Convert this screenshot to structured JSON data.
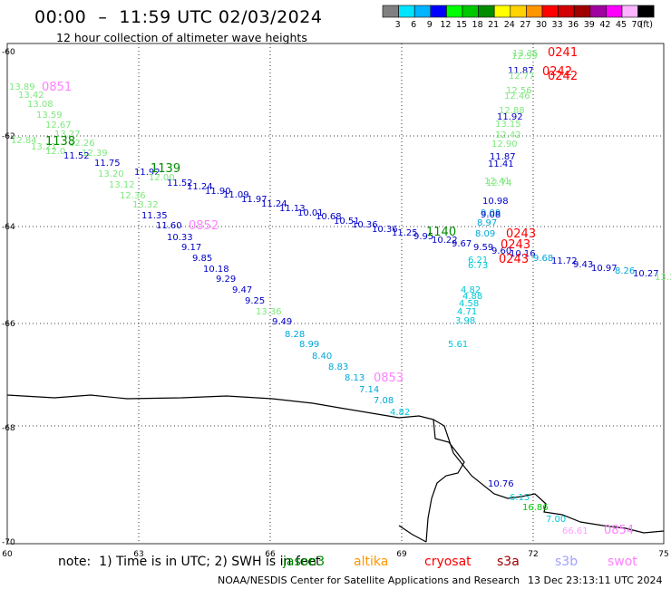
{
  "header": {
    "title": "00:00  –  11:59 UTC 02/03/2024",
    "subtitle": "12 hour collection of altimeter wave heights"
  },
  "scale": {
    "unit": "(ft)",
    "entries": [
      {
        "label": "3",
        "color": "#808080"
      },
      {
        "label": "6",
        "color": "#00e5ff"
      },
      {
        "label": "9",
        "color": "#00b4ff"
      },
      {
        "label": "12",
        "color": "#0000ff"
      },
      {
        "label": "15",
        "color": "#00ff00"
      },
      {
        "label": "18",
        "color": "#00c800"
      },
      {
        "label": "21",
        "color": "#008c00"
      },
      {
        "label": "24",
        "color": "#ffff00"
      },
      {
        "label": "27",
        "color": "#ffd200"
      },
      {
        "label": "30",
        "color": "#ff9600"
      },
      {
        "label": "33",
        "color": "#ff0000"
      },
      {
        "label": "36",
        "color": "#d20000"
      },
      {
        "label": "39",
        "color": "#a00000"
      },
      {
        "label": "42",
        "color": "#a000a0"
      },
      {
        "label": "45",
        "color": "#ff00ff"
      },
      {
        "label": "70",
        "color": "#ffb4ff"
      },
      {
        "label": "",
        "color": "#000000"
      }
    ]
  },
  "axes": {
    "lat_labels": [
      "-60",
      "-62",
      "-64",
      "-66",
      "-68",
      "-70"
    ],
    "lon_labels": [
      "60",
      "63",
      "66",
      "69",
      "72",
      "75"
    ]
  },
  "tracks": [
    {
      "labels": [
        {
          "t": "13.89",
          "c": "#7ee87e"
        },
        {
          "t": "13.42",
          "c": "#7ee87e"
        },
        {
          "t": "13.08",
          "c": "#7ee87e"
        },
        {
          "t": "13.59",
          "c": "#7ee87e"
        },
        {
          "t": "12.67",
          "c": "#7ee87e"
        },
        {
          "t": "13.27",
          "c": "#7ee87e"
        },
        {
          "t": "12.26",
          "c": "#7ee87e"
        },
        {
          "t": "12.39",
          "c": "#7ee87e"
        },
        {
          "t": "11.75",
          "c": "#0000c8"
        },
        {
          "t": "13.20",
          "c": "#7ee87e"
        },
        {
          "t": "13.12",
          "c": "#7ee87e"
        },
        {
          "t": "12.36",
          "c": "#7ee87e"
        },
        {
          "t": "13.32",
          "c": "#7ee87e"
        },
        {
          "t": "11.35",
          "c": "#0000c8"
        },
        {
          "t": "11.60",
          "c": "#0000c8"
        },
        {
          "t": "10.33",
          "c": "#0000c8"
        },
        {
          "t": "9.17",
          "c": "#0000c8"
        },
        {
          "t": "9.85",
          "c": "#0000c8"
        },
        {
          "t": "10.18",
          "c": "#0000c8"
        },
        {
          "t": "9.29",
          "c": "#0000c8"
        },
        {
          "t": "9.47",
          "c": "#0000c8"
        },
        {
          "t": "9.25",
          "c": "#0000c8"
        },
        {
          "t": "13.36",
          "c": "#7ee87e"
        },
        {
          "t": "9.49",
          "c": "#0000c8"
        },
        {
          "t": "8.28",
          "c": "#00a8d8"
        },
        {
          "t": "8.99",
          "c": "#00a8d8"
        },
        {
          "t": "8.40",
          "c": "#00a8d8"
        },
        {
          "t": "8.83",
          "c": "#00a8d8"
        },
        {
          "t": "8.13",
          "c": "#00a8d8"
        },
        {
          "t": "7.14",
          "c": "#00a8d8"
        },
        {
          "t": "7.08",
          "c": "#00a8d8"
        },
        {
          "t": "4.82",
          "c": "#00c8d8"
        }
      ]
    },
    {
      "labels": [
        {
          "t": "12.84",
          "c": "#7ee87e"
        },
        {
          "t": "13.21",
          "c": "#7ee87e"
        },
        {
          "t": "12.0",
          "c": "#7ee87e"
        },
        {
          "t": "11.52",
          "c": "#0000c8"
        },
        {
          "t": "11.92",
          "c": "#0000c8"
        },
        {
          "t": "12.00",
          "c": "#7ee87e"
        },
        {
          "t": "11.52",
          "c": "#0000c8"
        },
        {
          "t": "11.24",
          "c": "#0000c8"
        },
        {
          "t": "11.90",
          "c": "#0000c8"
        },
        {
          "t": "11.09",
          "c": "#0000c8"
        },
        {
          "t": "11.97",
          "c": "#0000c8"
        },
        {
          "t": "11.24",
          "c": "#0000c8"
        },
        {
          "t": "11.13",
          "c": "#0000c8"
        },
        {
          "t": "10.01",
          "c": "#0000c8"
        },
        {
          "t": "10.68",
          "c": "#0000c8"
        },
        {
          "t": "10.51",
          "c": "#0000c8"
        },
        {
          "t": "10.36",
          "c": "#0000c8"
        },
        {
          "t": "10.36",
          "c": "#0000c8"
        },
        {
          "t": "11.25",
          "c": "#0000c8"
        },
        {
          "t": "9.95",
          "c": "#0000c8"
        },
        {
          "t": "10.22",
          "c": "#0000c8"
        },
        {
          "t": "9.67",
          "c": "#0000c8"
        },
        {
          "t": "9.59",
          "c": "#0000c8"
        },
        {
          "t": "9.60",
          "c": "#0000c8"
        },
        {
          "t": "10.16",
          "c": "#0000c8"
        },
        {
          "t": "9.68",
          "c": "#00a8d8"
        },
        {
          "t": "11.72",
          "c": "#0000c8"
        },
        {
          "t": "9.43",
          "c": "#0000c8"
        },
        {
          "t": "10.97",
          "c": "#0000c8"
        },
        {
          "t": "8.26",
          "c": "#00a8d8"
        },
        {
          "t": "10.27",
          "c": "#0000c8"
        },
        {
          "t": "13.1",
          "c": "#7ee87e"
        }
      ]
    },
    {
      "labels": [
        {
          "t": "13.35",
          "c": "#7ee87e"
        },
        {
          "t": "12.59",
          "c": "#7ee87e"
        },
        {
          "t": "11.87",
          "c": "#0000c8"
        },
        {
          "t": "12.77",
          "c": "#7ee87e"
        },
        {
          "t": "12.56",
          "c": "#7ee87e"
        },
        {
          "t": "12.46",
          "c": "#7ee87e"
        },
        {
          "t": "12.88",
          "c": "#7ee87e"
        },
        {
          "t": "11.92",
          "c": "#0000c8"
        },
        {
          "t": "13.15",
          "c": "#7ee87e"
        },
        {
          "t": "12.42",
          "c": "#7ee87e"
        },
        {
          "t": "12.90",
          "c": "#7ee87e"
        },
        {
          "t": "11.87",
          "c": "#0000c8"
        },
        {
          "t": "11.41",
          "c": "#0000c8"
        },
        {
          "t": "12.41",
          "c": "#7ee87e"
        },
        {
          "t": "12.74",
          "c": "#7ee87e"
        },
        {
          "t": "10.98",
          "c": "#0000c8"
        },
        {
          "t": "9.08",
          "c": "#00a8d8"
        },
        {
          "t": "9.08",
          "c": "#0000c8"
        },
        {
          "t": "8.97",
          "c": "#00a8d8"
        },
        {
          "t": "8.09",
          "c": "#00a8d8"
        },
        {
          "t": "6.21",
          "c": "#00c8d8"
        },
        {
          "t": "6.73",
          "c": "#00c8d8"
        },
        {
          "t": "4.82",
          "c": "#00c8d8"
        },
        {
          "t": "4.88",
          "c": "#00c8d8"
        },
        {
          "t": "4.58",
          "c": "#00c8d8"
        },
        {
          "t": "4.71",
          "c": "#00c8d8"
        },
        {
          "t": "3.98",
          "c": "#00c8d8"
        },
        {
          "t": "5.61",
          "c": "#00c8d8"
        }
      ]
    },
    {
      "labels": [
        {
          "t": "10.76",
          "c": "#0000c8"
        },
        {
          "t": "6.15",
          "c": "#00c8d8"
        },
        {
          "t": "16.86",
          "c": "#00c800"
        },
        {
          "t": "7.00",
          "c": "#00c8d8"
        },
        {
          "t": "66.61",
          "c": "#ffa0ff"
        }
      ]
    }
  ],
  "time_tags": [
    {
      "t": "0851",
      "c": "#ff80ff"
    },
    {
      "t": "1138",
      "c": "#008c00"
    },
    {
      "t": "1139",
      "c": "#008c00"
    },
    {
      "t": "0852",
      "c": "#ff80ff"
    },
    {
      "t": "0853",
      "c": "#ff80ff"
    },
    {
      "t": "1140",
      "c": "#008c00"
    },
    {
      "t": "0241",
      "c": "#ff0000"
    },
    {
      "t": "0242",
      "c": "#ff0000"
    },
    {
      "t": "0243",
      "c": "#ff0000"
    },
    {
      "t": "0854",
      "c": "#ff80ff"
    }
  ],
  "bottom": {
    "note": "note:  1) Time is in UTC; 2) SWH is in feet",
    "satellites": [
      {
        "name": "jason3",
        "c": "#008c00"
      },
      {
        "name": "altika",
        "c": "#ff9600"
      },
      {
        "name": "cryosat",
        "c": "#ff0000"
      },
      {
        "name": "s3a",
        "c": "#a00000"
      },
      {
        "name": "s3b",
        "c": "#a0a0ff"
      },
      {
        "name": "swot",
        "c": "#ff80ff"
      }
    ],
    "credit": "NOAA/NESDIS Center for Satellite Applications and Research",
    "stamp": "13 Dec 23:13:11 UTC 2024"
  }
}
